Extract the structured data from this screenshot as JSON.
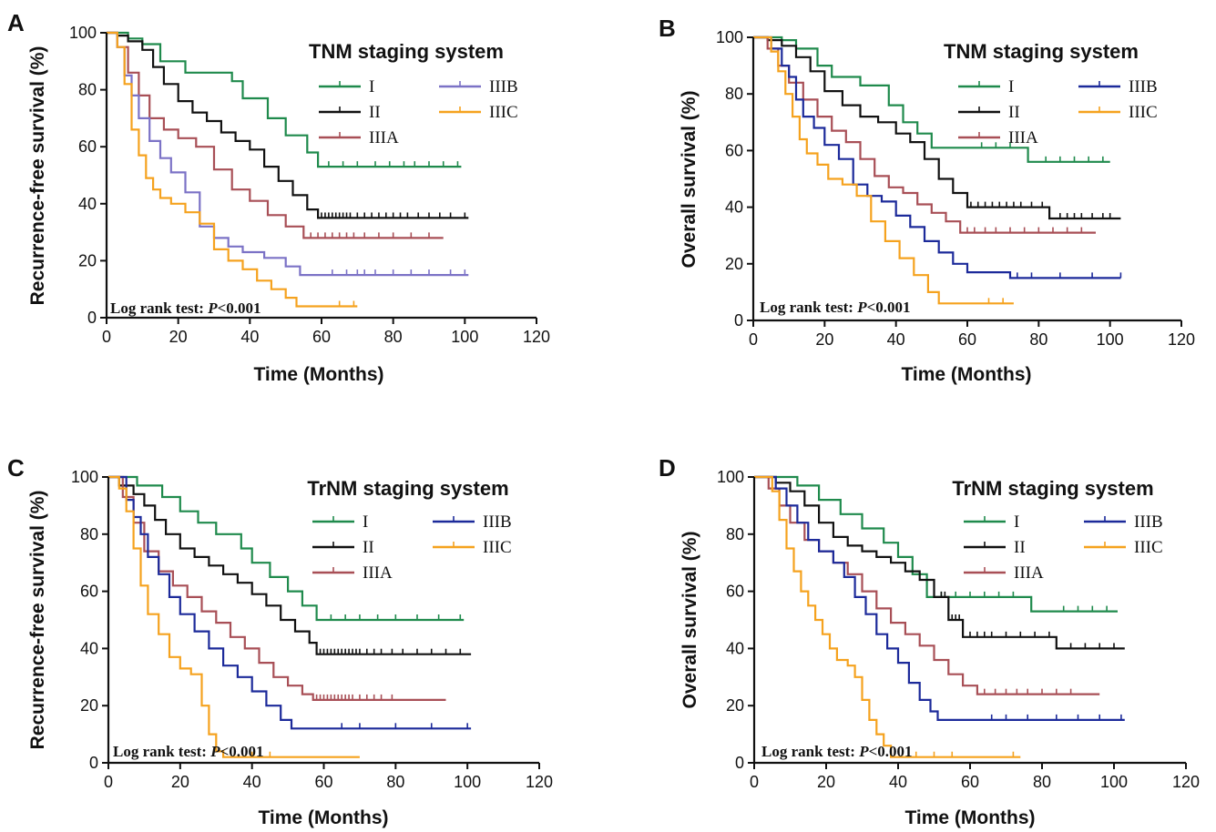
{
  "colors": {
    "I": "#1f8a4c",
    "II": "#111111",
    "IIIA": "#a84f56",
    "IIIB_purple": "#7b72c6",
    "IIIB_blue": "#1c2a9a",
    "IIIC": "#f5a21e"
  },
  "chart_data": [
    {
      "type": "line",
      "panel": "A",
      "title": "TNM staging system",
      "xlabel": "Time (Months)",
      "ylabel": "Recurrence-free survival (%)",
      "xlim": [
        0,
        120
      ],
      "ylim": [
        0,
        100
      ],
      "x_ticks": [
        "0",
        "20",
        "40",
        "60",
        "80",
        "100",
        "120"
      ],
      "y_ticks": [
        "0",
        "20",
        "40",
        "60",
        "80",
        "100"
      ],
      "annotation": {
        "prefix": "Log rank test: ",
        "p": "P",
        "suffix": "<0.001"
      },
      "legend_columns": 2,
      "series": [
        {
          "name": "I",
          "color": "#1f8a4c",
          "end": 99,
          "x": [
            0,
            6,
            10,
            15,
            22,
            35,
            38,
            45,
            50,
            56,
            59
          ],
          "y": [
            100,
            98,
            96,
            90,
            86,
            83,
            77,
            70,
            64,
            58,
            53
          ],
          "censor": [
            62,
            66,
            70,
            75,
            79,
            83,
            86,
            90,
            94,
            98
          ]
        },
        {
          "name": "II",
          "color": "#111111",
          "end": 101,
          "x": [
            0,
            3,
            6,
            10,
            13,
            16,
            20,
            24,
            28,
            32,
            36,
            40,
            44,
            48,
            52,
            56,
            59
          ],
          "y": [
            100,
            99,
            97,
            94,
            88,
            82,
            76,
            72,
            69,
            65,
            62,
            59,
            53,
            48,
            43,
            38,
            35
          ],
          "censor": [
            60,
            61,
            62,
            63,
            64,
            65,
            66,
            67,
            68,
            70,
            72,
            74,
            76,
            78,
            80,
            82,
            84,
            87,
            90,
            93,
            96,
            100
          ]
        },
        {
          "name": "IIIA",
          "color": "#a84f56",
          "end": 94,
          "x": [
            0,
            3,
            6,
            9,
            12,
            16,
            20,
            25,
            30,
            35,
            40,
            45,
            50,
            55
          ],
          "y": [
            100,
            95,
            86,
            78,
            70,
            66,
            63,
            60,
            52,
            45,
            41,
            36,
            32,
            28
          ],
          "censor": [
            57,
            59,
            61,
            63,
            65,
            67,
            69,
            72,
            76,
            80,
            85,
            90
          ]
        },
        {
          "name": "IIIB",
          "color": "#7b72c6",
          "end": 101,
          "x": [
            0,
            3,
            5,
            7,
            9,
            12,
            15,
            18,
            22,
            26,
            30,
            34,
            38,
            44,
            50,
            54
          ],
          "y": [
            100,
            95,
            85,
            78,
            70,
            62,
            56,
            51,
            44,
            32,
            28,
            25,
            23,
            21,
            18,
            15
          ],
          "censor": [
            63,
            67,
            70,
            72,
            75,
            80,
            85,
            90,
            96,
            100
          ]
        },
        {
          "name": "IIIC",
          "color": "#f5a21e",
          "end": 70,
          "x": [
            0,
            3,
            5,
            7,
            9,
            11,
            13,
            15,
            18,
            22,
            26,
            30,
            34,
            38,
            42,
            46,
            50,
            53
          ],
          "y": [
            100,
            95,
            82,
            66,
            57,
            49,
            45,
            42,
            40,
            37,
            33,
            24,
            20,
            17,
            13,
            10,
            7,
            4
          ],
          "censor": [
            65,
            69
          ]
        }
      ]
    },
    {
      "type": "line",
      "panel": "B",
      "title": "TNM staging system",
      "xlabel": "Time (Months)",
      "ylabel": "Overall survival (%)",
      "xlim": [
        0,
        120
      ],
      "ylim": [
        0,
        100
      ],
      "x_ticks": [
        "0",
        "20",
        "40",
        "60",
        "80",
        "100",
        "120"
      ],
      "y_ticks": [
        "0",
        "20",
        "40",
        "60",
        "80",
        "100"
      ],
      "annotation": {
        "prefix": "Log rank test: ",
        "p": "P",
        "suffix": "<0.001"
      },
      "legend_columns": 2,
      "series": [
        {
          "name": "I",
          "color": "#1f8a4c",
          "end": 100,
          "x": [
            0,
            8,
            12,
            18,
            22,
            30,
            38,
            42,
            46,
            50,
            77
          ],
          "y": [
            100,
            99,
            96,
            90,
            86,
            83,
            76,
            70,
            66,
            61,
            56
          ],
          "censor": [
            64,
            68,
            72,
            82,
            86,
            90,
            94,
            98
          ]
        },
        {
          "name": "II",
          "color": "#111111",
          "end": 103,
          "x": [
            0,
            4,
            8,
            12,
            16,
            20,
            25,
            30,
            35,
            40,
            44,
            48,
            52,
            56,
            60,
            83
          ],
          "y": [
            100,
            99,
            97,
            93,
            88,
            81,
            76,
            72,
            70,
            66,
            63,
            57,
            50,
            45,
            40,
            36
          ],
          "censor": [
            61,
            63,
            65,
            67,
            69,
            71,
            73,
            75,
            78,
            81,
            86,
            88,
            90,
            92,
            95,
            98,
            100
          ]
        },
        {
          "name": "IIIA",
          "color": "#a84f56",
          "end": 96,
          "x": [
            0,
            4,
            7,
            10,
            14,
            18,
            22,
            26,
            30,
            34,
            38,
            42,
            46,
            50,
            54,
            58
          ],
          "y": [
            100,
            96,
            90,
            84,
            78,
            72,
            67,
            63,
            57,
            51,
            47,
            45,
            41,
            38,
            35,
            31
          ],
          "censor": [
            60,
            62,
            65,
            68,
            72,
            76,
            80,
            84,
            88,
            92
          ]
        },
        {
          "name": "IIIB",
          "color": "#1c2a9a",
          "end": 103,
          "x": [
            0,
            5,
            8,
            10,
            12,
            14,
            17,
            20,
            24,
            28,
            32,
            36,
            40,
            44,
            48,
            52,
            56,
            60,
            72
          ],
          "y": [
            100,
            96,
            90,
            86,
            78,
            72,
            68,
            62,
            57,
            48,
            44,
            42,
            37,
            33,
            28,
            24,
            20,
            17,
            15
          ],
          "censor": [
            74,
            78,
            86,
            95,
            103
          ]
        },
        {
          "name": "IIIC",
          "color": "#f5a21e",
          "end": 73,
          "x": [
            0,
            5,
            7,
            9,
            11,
            13,
            15,
            18,
            21,
            25,
            29,
            33,
            37,
            41,
            45,
            49,
            52
          ],
          "y": [
            100,
            95,
            88,
            80,
            72,
            64,
            59,
            55,
            50,
            48,
            44,
            35,
            28,
            22,
            16,
            10,
            6
          ],
          "censor": [
            66,
            70
          ]
        }
      ]
    },
    {
      "type": "line",
      "panel": "C",
      "title": "TrNM staging system",
      "xlabel": "Time (Months)",
      "ylabel": "Recurrence-free survival (%)",
      "xlim": [
        0,
        120
      ],
      "ylim": [
        0,
        100
      ],
      "x_ticks": [
        "0",
        "20",
        "40",
        "60",
        "80",
        "100",
        "120"
      ],
      "y_ticks": [
        "0",
        "20",
        "40",
        "60",
        "80",
        "100"
      ],
      "annotation": {
        "prefix": "Log rank test: ",
        "p": "P",
        "suffix": "<0.001"
      },
      "legend_columns": 2,
      "series": [
        {
          "name": "I",
          "color": "#1f8a4c",
          "end": 99,
          "x": [
            0,
            8,
            15,
            20,
            25,
            30,
            37,
            40,
            45,
            50,
            54,
            58
          ],
          "y": [
            100,
            97,
            93,
            88,
            84,
            80,
            75,
            70,
            65,
            60,
            55,
            50
          ],
          "censor": [
            62,
            66,
            70,
            75,
            80,
            86,
            92,
            98
          ]
        },
        {
          "name": "II",
          "color": "#111111",
          "end": 101,
          "x": [
            0,
            3,
            7,
            10,
            13,
            16,
            20,
            24,
            28,
            32,
            36,
            40,
            44,
            48,
            52,
            56,
            58
          ],
          "y": [
            100,
            97,
            94,
            90,
            85,
            80,
            75,
            72,
            69,
            66,
            63,
            59,
            55,
            50,
            46,
            42,
            38
          ],
          "censor": [
            59,
            60,
            61,
            62,
            63,
            64,
            65,
            66,
            67,
            68,
            69,
            70,
            72,
            74,
            76,
            79,
            82,
            86,
            90,
            94,
            98
          ]
        },
        {
          "name": "IIIA",
          "color": "#a84f56",
          "end": 94,
          "x": [
            0,
            4,
            7,
            10,
            14,
            18,
            22,
            26,
            30,
            34,
            38,
            42,
            46,
            50,
            54,
            57
          ],
          "y": [
            100,
            93,
            84,
            74,
            67,
            62,
            58,
            53,
            49,
            44,
            40,
            35,
            30,
            27,
            24,
            22
          ],
          "censor": [
            58,
            59,
            60,
            61,
            62,
            63,
            64,
            65,
            66,
            67,
            68,
            70,
            72,
            74,
            76,
            79
          ]
        },
        {
          "name": "IIIB",
          "color": "#1c2a9a",
          "end": 101,
          "x": [
            0,
            5,
            7,
            9,
            11,
            14,
            17,
            20,
            24,
            28,
            32,
            36,
            40,
            44,
            48,
            51
          ],
          "y": [
            100,
            92,
            86,
            80,
            72,
            66,
            58,
            52,
            46,
            40,
            34,
            30,
            25,
            20,
            15,
            12
          ],
          "censor": [
            65,
            70,
            80,
            90,
            100
          ]
        },
        {
          "name": "IIIC",
          "color": "#f5a21e",
          "end": 70,
          "x": [
            0,
            3,
            5,
            7,
            9,
            11,
            14,
            17,
            20,
            23,
            26,
            28,
            30,
            32
          ],
          "y": [
            100,
            96,
            88,
            75,
            62,
            52,
            45,
            37,
            33,
            31,
            20,
            10,
            4,
            2
          ],
          "censor": [
            40,
            45
          ]
        }
      ]
    },
    {
      "type": "line",
      "panel": "D",
      "title": "TrNM staging system",
      "xlabel": "Time (Months)",
      "ylabel": "Overall survival (%)",
      "xlim": [
        0,
        120
      ],
      "ylim": [
        0,
        100
      ],
      "x_ticks": [
        "0",
        "20",
        "40",
        "60",
        "80",
        "100",
        "120"
      ],
      "y_ticks": [
        "0",
        "20",
        "40",
        "60",
        "80",
        "100"
      ],
      "annotation": {
        "prefix": "Log rank test: ",
        "p": "P",
        "suffix": "<0.001"
      },
      "legend_columns": 2,
      "series": [
        {
          "name": "I",
          "color": "#1f8a4c",
          "end": 101,
          "x": [
            0,
            12,
            18,
            24,
            30,
            36,
            40,
            44,
            48,
            77
          ],
          "y": [
            100,
            97,
            92,
            87,
            82,
            77,
            72,
            66,
            58,
            53
          ],
          "censor": [
            52,
            56,
            60,
            64,
            68,
            72,
            86,
            90,
            94,
            98
          ]
        },
        {
          "name": "II",
          "color": "#111111",
          "end": 103,
          "x": [
            0,
            6,
            10,
            14,
            18,
            22,
            26,
            30,
            34,
            38,
            42,
            46,
            50,
            54,
            58,
            84
          ],
          "y": [
            100,
            98,
            95,
            90,
            84,
            79,
            76,
            74,
            72,
            70,
            67,
            64,
            58,
            50,
            44,
            40
          ],
          "censor": [
            52,
            53,
            54,
            55,
            56,
            57,
            58,
            60,
            62,
            64,
            66,
            70,
            74,
            78,
            82,
            88,
            92,
            96,
            100
          ]
        },
        {
          "name": "IIIA",
          "color": "#a84f56",
          "end": 96,
          "x": [
            0,
            4,
            7,
            10,
            14,
            18,
            22,
            26,
            30,
            34,
            38,
            42,
            46,
            50,
            54,
            58,
            62
          ],
          "y": [
            100,
            96,
            90,
            84,
            78,
            74,
            70,
            66,
            60,
            54,
            49,
            45,
            41,
            36,
            31,
            27,
            24
          ],
          "censor": [
            64,
            67,
            70,
            73,
            76,
            80,
            84,
            88
          ]
        },
        {
          "name": "IIIB",
          "color": "#1c2a9a",
          "end": 103,
          "x": [
            0,
            6,
            9,
            12,
            15,
            18,
            22,
            25,
            28,
            31,
            34,
            37,
            40,
            43,
            46,
            49,
            51
          ],
          "y": [
            100,
            96,
            90,
            84,
            78,
            74,
            70,
            65,
            58,
            52,
            45,
            40,
            35,
            28,
            22,
            18,
            15
          ],
          "censor": [
            66,
            70,
            76,
            84,
            90,
            96,
            102
          ]
        },
        {
          "name": "IIIC",
          "color": "#f5a21e",
          "end": 74,
          "x": [
            0,
            5,
            7,
            9,
            11,
            13,
            15,
            17,
            19,
            21,
            23,
            26,
            28,
            30,
            32,
            34,
            36,
            38
          ],
          "y": [
            100,
            95,
            85,
            75,
            67,
            60,
            55,
            50,
            45,
            40,
            36,
            34,
            30,
            22,
            15,
            10,
            6,
            2
          ],
          "censor": [
            45,
            50,
            55,
            72
          ]
        }
      ]
    }
  ]
}
